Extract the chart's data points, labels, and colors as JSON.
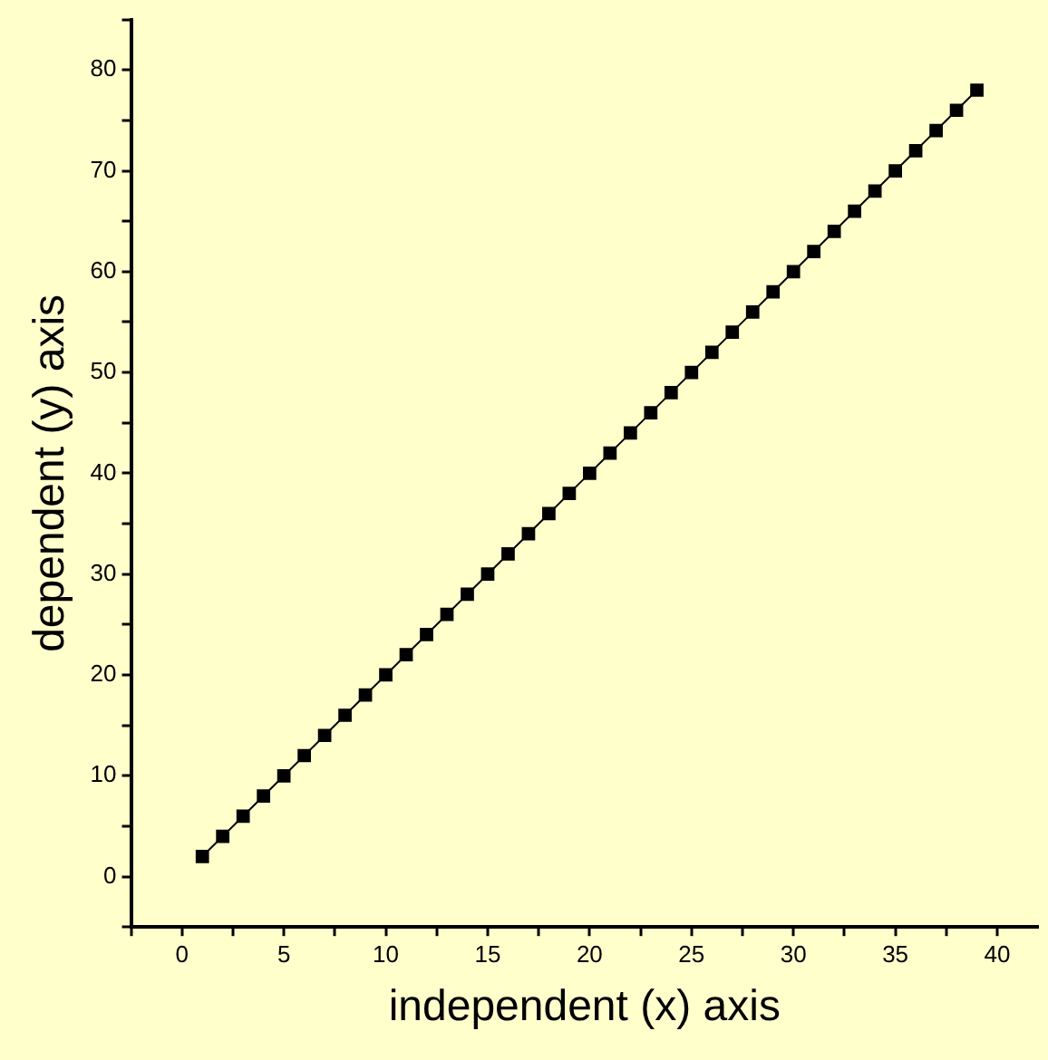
{
  "chart_data": {
    "type": "line",
    "xlabel": "independent (x) axis",
    "ylabel": "dependent (y) axis",
    "x": [
      1,
      2,
      3,
      4,
      5,
      6,
      7,
      8,
      9,
      10,
      11,
      12,
      13,
      14,
      15,
      16,
      17,
      18,
      19,
      20,
      21,
      22,
      23,
      24,
      25,
      26,
      27,
      28,
      29,
      30,
      31,
      32,
      33,
      34,
      35,
      36,
      37,
      38,
      39
    ],
    "series": [
      {
        "color": "#000000",
        "values": [
          2,
          4,
          6,
          8,
          10,
          12,
          14,
          16,
          18,
          20,
          22,
          24,
          26,
          28,
          30,
          32,
          34,
          36,
          38,
          40,
          42,
          44,
          46,
          48,
          50,
          52,
          54,
          56,
          58,
          60,
          62,
          64,
          66,
          68,
          70,
          72,
          74,
          76,
          78
        ]
      }
    ],
    "xlim": [
      -2.5,
      42
    ],
    "ylim": [
      -5,
      85
    ],
    "xticks": [
      {
        "value": -2.5,
        "label": null
      },
      0,
      {
        "value": 2.5,
        "label": null
      },
      5,
      {
        "value": 7.5,
        "label": null
      },
      10,
      {
        "value": 12.5,
        "label": null
      },
      15,
      {
        "value": 17.5,
        "label": null
      },
      20,
      {
        "value": 22.5,
        "label": null
      },
      25,
      {
        "value": 27.5,
        "label": null
      },
      30,
      {
        "value": 32.5,
        "label": null
      },
      35,
      {
        "value": 37.5,
        "label": null
      },
      40
    ],
    "yticks": [
      {
        "value": -5,
        "label": null
      },
      0,
      {
        "value": 5,
        "label": null
      },
      10,
      {
        "value": 15,
        "label": null
      },
      20,
      {
        "value": 25,
        "label": null
      },
      30,
      {
        "value": 35,
        "label": null
      },
      40,
      {
        "value": 45,
        "label": null
      },
      50,
      {
        "value": 55,
        "label": null
      },
      60,
      {
        "value": 65,
        "label": null
      },
      70,
      {
        "value": 75,
        "label": null
      },
      80,
      {
        "value": 85,
        "label": null
      }
    ],
    "grid": false,
    "legend": false,
    "marker": "square",
    "line_style": "solid"
  }
}
